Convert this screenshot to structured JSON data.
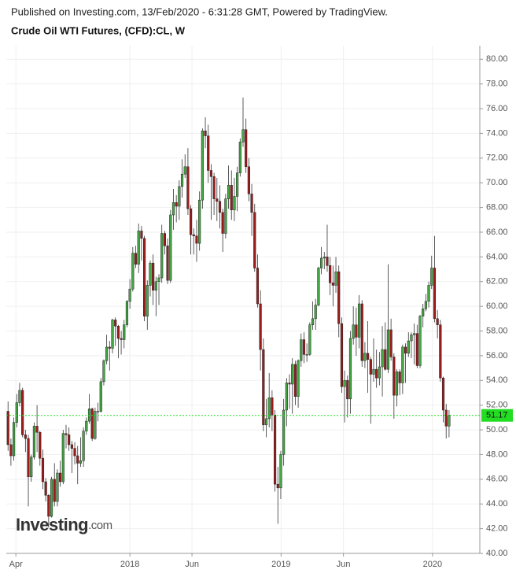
{
  "header": "Published on Investing.com, 13/Feb/2020 - 6:31:28 GMT, Powered by TradingView.",
  "chart_data": {
    "type": "candlestick",
    "title": "Crude Oil WTI Futures, (CFD):CL, W",
    "logo": [
      "Investing",
      ".com"
    ],
    "up_color": "#43a843",
    "down_color": "#9e1c1c",
    "last_color": "#22dd22",
    "grid": true,
    "x": [
      0,
      1,
      2,
      3,
      4,
      5,
      6,
      7,
      8,
      9,
      10,
      11,
      12,
      13,
      14,
      15,
      16,
      17,
      18,
      19,
      20,
      21,
      22,
      23,
      24,
      25,
      26,
      27,
      28,
      29,
      30,
      31,
      32,
      33,
      34,
      35,
      36,
      37,
      38,
      39,
      40,
      41,
      42,
      43,
      44,
      45,
      46,
      47,
      48,
      49,
      50,
      51,
      52,
      53,
      54,
      55,
      56,
      57,
      58,
      59,
      60,
      61,
      62,
      63,
      64,
      65,
      66,
      67,
      68,
      69,
      70,
      71,
      72,
      73,
      74,
      75,
      76,
      77,
      78,
      79,
      80,
      81,
      82,
      83,
      84,
      85,
      86,
      87,
      88,
      89,
      90,
      91,
      92,
      93,
      94,
      95,
      96,
      97,
      98,
      99,
      100,
      101,
      102,
      103,
      104,
      105,
      106,
      107,
      108,
      109,
      110,
      111,
      112,
      113,
      114,
      115,
      116,
      117,
      118,
      119,
      120,
      121,
      122,
      123,
      124,
      125,
      126,
      127,
      128,
      129,
      130,
      131,
      132,
      133,
      134,
      135,
      136,
      137,
      138,
      139,
      140,
      141,
      142,
      143,
      144,
      145,
      146,
      147,
      148,
      149,
      150,
      151,
      152
    ],
    "open": [
      51.5,
      48.8,
      47.9,
      50.6,
      52.2,
      53.2,
      49.6,
      49.3,
      46.2,
      47.8,
      50.3,
      49.8,
      47.7,
      45.8,
      44.7,
      43.0,
      46.0,
      44.2,
      46.5,
      45.8,
      49.7,
      49.6,
      48.8,
      48.5,
      47.9,
      47.3,
      47.5,
      49.9,
      50.7,
      51.7,
      49.3,
      51.5,
      51.5,
      53.9,
      55.6,
      56.7,
      56.6,
      58.9,
      58.4,
      57.4,
      57.3,
      58.5,
      60.4,
      61.4,
      64.3,
      63.4,
      66.1,
      65.5,
      59.2,
      61.7,
      63.5,
      61.3,
      62.0,
      62.3,
      65.9,
      64.9,
      62.1,
      67.4,
      68.4,
      68.1,
      69.7,
      70.7,
      71.3,
      67.9,
      65.8,
      65.7,
      65.1,
      68.6,
      74.2,
      73.8,
      71.0,
      70.5,
      68.7,
      68.5,
      67.6,
      65.9,
      68.7,
      69.8,
      67.8,
      68.9,
      70.8,
      73.3,
      74.3,
      71.3,
      69.1,
      67.6,
      63.1,
      60.2,
      56.5,
      50.4,
      50.9,
      52.6,
      51.2,
      45.6,
      45.3,
      48.0,
      51.6,
      53.8,
      53.7,
      55.3,
      52.7,
      55.6,
      57.3,
      56.1,
      56.1,
      58.5,
      59.0,
      60.1,
      63.1,
      63.9,
      64.0,
      63.3,
      61.9,
      61.7,
      62.8,
      58.6,
      53.5,
      54.0,
      52.5,
      57.4,
      58.5,
      57.5,
      60.2,
      55.6,
      56.2,
      55.7,
      54.5,
      54.9,
      54.2,
      55.1,
      56.5,
      54.9,
      58.1,
      55.9,
      52.8,
      54.7,
      53.8,
      56.7,
      56.2,
      57.2,
      57.7,
      57.8,
      55.2,
      59.2,
      59.8,
      60.4,
      61.7,
      63.1,
      59.0,
      58.5,
      54.2,
      51.6,
      50.3
    ],
    "high": [
      52.3,
      49.3,
      51.0,
      52.9,
      53.8,
      53.4,
      50.0,
      49.6,
      48.0,
      50.6,
      52.0,
      49.9,
      48.4,
      46.1,
      44.8,
      46.2,
      47.3,
      46.8,
      47.5,
      50.0,
      50.4,
      50.2,
      49.1,
      49.0,
      48.7,
      49.4,
      50.2,
      51.0,
      52.9,
      51.8,
      51.8,
      52.2,
      54.2,
      55.7,
      57.7,
      57.2,
      59.0,
      59.1,
      58.5,
      58.0,
      58.9,
      60.5,
      62.2,
      64.8,
      64.9,
      66.7,
      66.5,
      65.7,
      62.1,
      63.7,
      64.2,
      62.4,
      62.6,
      66.6,
      66.1,
      65.5,
      67.8,
      69.5,
      69.0,
      70.2,
      71.9,
      72.3,
      72.8,
      68.2,
      66.3,
      67.0,
      69.3,
      74.4,
      75.3,
      74.7,
      71.5,
      70.8,
      70.4,
      69.8,
      67.9,
      69.1,
      71.4,
      71.0,
      70.4,
      71.3,
      73.6,
      76.9,
      75.2,
      72.0,
      69.9,
      68.3,
      64.2,
      61.3,
      57.4,
      52.5,
      54.6,
      53.2,
      51.6,
      47.0,
      48.3,
      52.5,
      54.2,
      54.5,
      55.8,
      55.6,
      55.7,
      57.8,
      57.9,
      57.0,
      58.7,
      60.4,
      60.6,
      63.2,
      64.8,
      64.4,
      66.6,
      64.0,
      63.3,
      64.0,
      63.3,
      59.1,
      54.8,
      54.4,
      58.0,
      60.0,
      59.9,
      60.9,
      60.5,
      57.1,
      58.8,
      55.9,
      57.4,
      56.5,
      56.3,
      58.4,
      58.7,
      63.4,
      59.0,
      56.2,
      54.9,
      54.9,
      56.9,
      57.0,
      57.9,
      57.9,
      58.6,
      58.5,
      59.3,
      60.2,
      61.0,
      62.0,
      64.1,
      65.7,
      59.7,
      58.9,
      54.3,
      52.1,
      51.6
    ],
    "low": [
      48.3,
      47.1,
      47.5,
      50.2,
      51.9,
      49.4,
      48.2,
      43.8,
      45.8,
      47.6,
      48.2,
      47.1,
      45.2,
      44.2,
      42.1,
      42.9,
      43.8,
      43.8,
      45.4,
      45.6,
      48.5,
      48.3,
      46.5,
      47.2,
      45.6,
      47.0,
      47.0,
      49.6,
      50.5,
      49.1,
      49.2,
      50.7,
      51.4,
      53.6,
      55.3,
      54.8,
      56.2,
      56.8,
      55.8,
      56.1,
      56.6,
      58.3,
      59.8,
      61.2,
      63.1,
      62.7,
      63.7,
      58.8,
      58.1,
      60.8,
      60.1,
      59.2,
      60.1,
      61.9,
      64.2,
      61.8,
      61.9,
      66.2,
      66.8,
      67.0,
      68.8,
      70.4,
      67.4,
      64.2,
      64.2,
      63.6,
      64.5,
      67.9,
      72.8,
      70.0,
      67.0,
      67.4,
      66.9,
      66.3,
      64.4,
      65.5,
      67.9,
      67.0,
      66.9,
      67.7,
      70.5,
      72.9,
      70.8,
      68.5,
      65.7,
      62.8,
      59.9,
      54.8,
      49.9,
      49.4,
      50.2,
      49.9,
      45.0,
      42.4,
      44.4,
      47.1,
      50.3,
      51.7,
      51.3,
      52.0,
      51.8,
      55.1,
      55.4,
      55.5,
      56.0,
      58.1,
      58.1,
      60.0,
      62.6,
      63.0,
      62.8,
      60.9,
      60.0,
      61.1,
      57.5,
      53.0,
      50.6,
      51.0,
      51.3,
      56.9,
      56.0,
      56.6,
      55.1,
      55.0,
      53.0,
      50.5,
      53.9,
      53.4,
      53.6,
      52.7,
      54.8,
      54.6,
      55.6,
      50.9,
      51.9,
      52.8,
      52.9,
      53.8,
      55.9,
      55.8,
      55.3,
      55.0,
      55.0,
      58.3,
      59.6,
      59.9,
      61.4,
      58.7,
      57.4,
      53.9,
      50.6,
      49.3,
      49.4
    ],
    "close": [
      48.8,
      47.9,
      50.6,
      52.2,
      53.2,
      49.6,
      49.3,
      46.2,
      47.8,
      50.3,
      49.8,
      47.7,
      45.8,
      44.7,
      43.0,
      46.0,
      44.2,
      46.5,
      45.8,
      49.7,
      49.6,
      48.8,
      48.5,
      47.9,
      47.3,
      47.5,
      49.9,
      50.7,
      51.7,
      49.3,
      51.5,
      51.5,
      53.9,
      55.6,
      56.7,
      56.6,
      58.9,
      58.4,
      57.4,
      57.3,
      58.5,
      60.4,
      61.4,
      64.3,
      63.4,
      66.1,
      65.5,
      59.2,
      61.7,
      63.5,
      61.3,
      62.0,
      62.3,
      65.9,
      64.9,
      62.1,
      67.4,
      68.4,
      68.1,
      69.7,
      70.7,
      71.3,
      67.9,
      65.8,
      65.7,
      65.1,
      68.6,
      74.2,
      73.8,
      71.0,
      70.5,
      68.7,
      68.5,
      67.6,
      65.9,
      68.7,
      69.8,
      67.8,
      68.9,
      70.8,
      73.3,
      74.3,
      71.3,
      69.1,
      67.6,
      63.1,
      60.2,
      56.5,
      50.4,
      50.9,
      52.6,
      51.2,
      45.6,
      45.3,
      48.0,
      51.6,
      53.8,
      53.7,
      55.3,
      52.7,
      55.6,
      57.3,
      56.1,
      56.1,
      58.5,
      59.0,
      60.1,
      63.1,
      63.9,
      64.0,
      63.3,
      61.9,
      61.7,
      62.8,
      58.6,
      53.5,
      54.0,
      52.5,
      57.4,
      58.5,
      57.5,
      60.2,
      55.6,
      56.2,
      55.7,
      54.5,
      54.9,
      54.2,
      55.1,
      56.5,
      54.9,
      58.1,
      55.9,
      52.8,
      54.7,
      53.8,
      56.7,
      56.2,
      57.2,
      57.7,
      57.8,
      55.2,
      59.2,
      59.8,
      60.4,
      61.7,
      63.1,
      59.0,
      58.5,
      54.2,
      51.6,
      50.3,
      51.17
    ],
    "xlim": [
      -0.6,
      162.6
    ],
    "xticks": [
      {
        "value": 2.7,
        "label": "Apr"
      },
      {
        "value": 42,
        "label": "2018"
      },
      {
        "value": 63.4,
        "label": "Jun"
      },
      {
        "value": 94.1,
        "label": "2019"
      },
      {
        "value": 115.6,
        "label": "Jun"
      },
      {
        "value": 146.3,
        "label": "2020"
      }
    ],
    "ylim": [
      40,
      81.1
    ],
    "yticks": [
      {
        "value": 40,
        "label": "40.00"
      },
      {
        "value": 42,
        "label": "42.00"
      },
      {
        "value": 44,
        "label": "44.00"
      },
      {
        "value": 46,
        "label": "46.00"
      },
      {
        "value": 48,
        "label": "48.00"
      },
      {
        "value": 50,
        "label": "50.00"
      },
      {
        "value": 52,
        "label": "52.00"
      },
      {
        "value": 54,
        "label": "54.00"
      },
      {
        "value": 56,
        "label": "56.00"
      },
      {
        "value": 58,
        "label": "58.00"
      },
      {
        "value": 60,
        "label": "60.00"
      },
      {
        "value": 62,
        "label": "62.00"
      },
      {
        "value": 64,
        "label": "64.00"
      },
      {
        "value": 66,
        "label": "66.00"
      },
      {
        "value": 68,
        "label": "68.00"
      },
      {
        "value": 70,
        "label": "70.00"
      },
      {
        "value": 72,
        "label": "72.00"
      },
      {
        "value": 74,
        "label": "74.00"
      },
      {
        "value": 76,
        "label": "76.00"
      },
      {
        "value": 78,
        "label": "78.00"
      },
      {
        "value": 80,
        "label": "80.00"
      }
    ]
  }
}
